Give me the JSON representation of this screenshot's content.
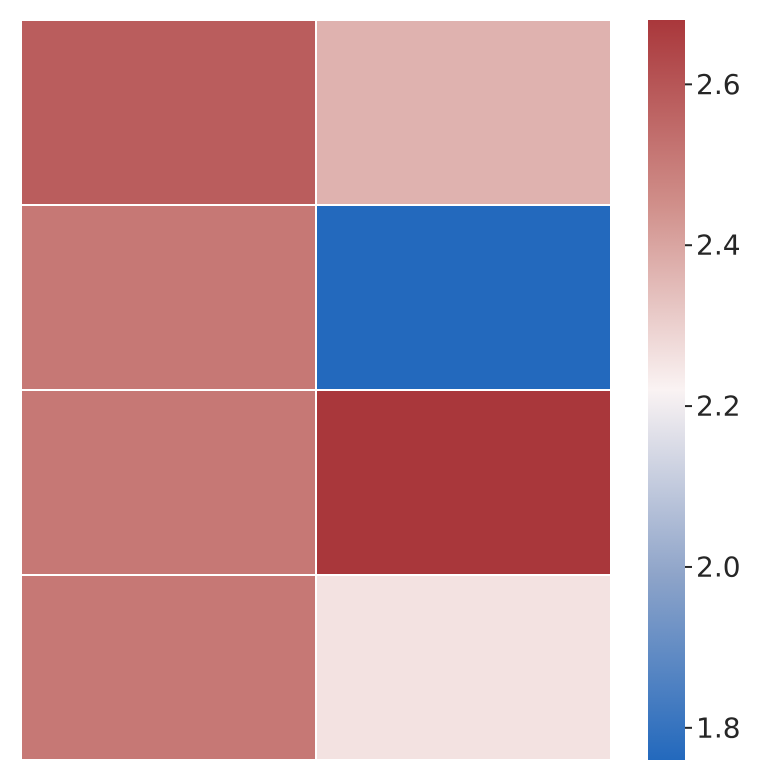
{
  "chart_data": {
    "type": "heatmap",
    "rows": 4,
    "cols": 2,
    "values": [
      [
        2.58,
        2.37
      ],
      [
        2.51,
        1.76
      ],
      [
        2.51,
        2.68
      ],
      [
        2.51,
        2.26
      ]
    ],
    "title": "",
    "xlabel": "",
    "ylabel": "",
    "x_tick_labels": [],
    "y_tick_labels": [],
    "colorbar": {
      "min": 1.76,
      "max": 2.68,
      "ticks": [
        1.8,
        2.0,
        2.2,
        2.4,
        2.6
      ],
      "tick_labels": [
        "1.8",
        "2.0",
        "2.2",
        "2.4",
        "2.6"
      ]
    },
    "colormap": {
      "name": "vlag",
      "stops": [
        {
          "t": 0.0,
          "color": "#2369bd"
        },
        {
          "t": 0.25,
          "color": "#8ea4c9"
        },
        {
          "t": 0.5,
          "color": "#faf3f3"
        },
        {
          "t": 0.75,
          "color": "#d08f8a"
        },
        {
          "t": 1.0,
          "color": "#a9373b"
        }
      ]
    },
    "cell_border_color": "#ffffff",
    "grid": false
  }
}
